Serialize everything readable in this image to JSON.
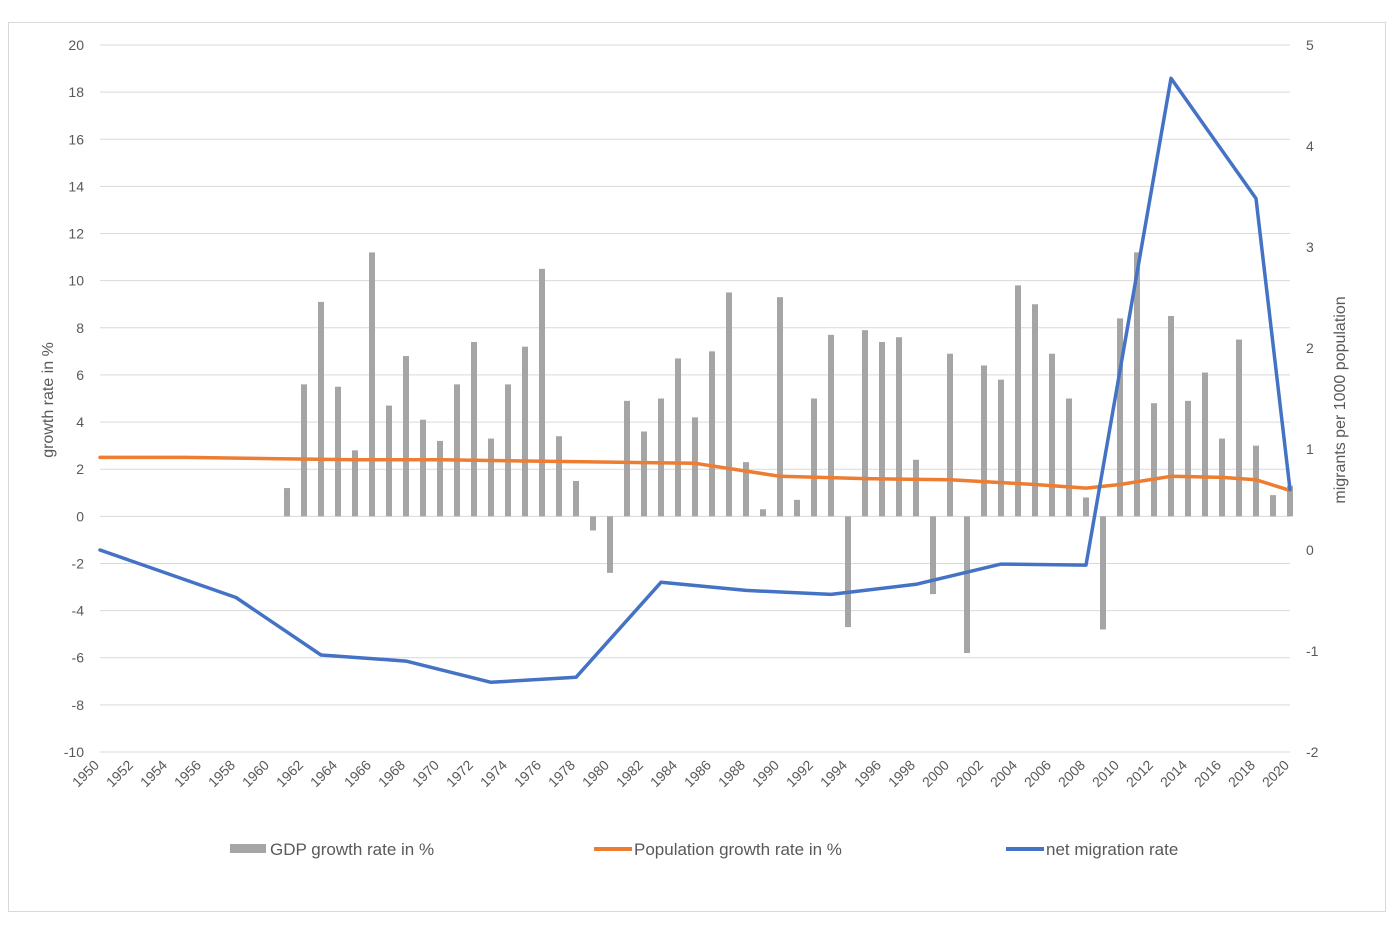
{
  "chart_data": {
    "type": "bar",
    "title": "",
    "ylabel": "growth rate in %",
    "y2label": "migrants per 1000 population",
    "ylim": [
      -10,
      20
    ],
    "y2lim": [
      -2,
      5
    ],
    "yticks": [
      -10,
      -8,
      -6,
      -4,
      -2,
      0,
      2,
      4,
      6,
      8,
      10,
      12,
      14,
      16,
      18,
      20
    ],
    "y2ticks": [
      -2,
      -1,
      0,
      1,
      2,
      3,
      4,
      5
    ],
    "xlim": [
      1950,
      2020
    ],
    "xticks": [
      1950,
      1952,
      1954,
      1956,
      1958,
      1960,
      1962,
      1964,
      1966,
      1968,
      1970,
      1972,
      1974,
      1976,
      1978,
      1980,
      1982,
      1984,
      1986,
      1988,
      1990,
      1992,
      1994,
      1996,
      1998,
      2000,
      2002,
      2004,
      2006,
      2008,
      2010,
      2012,
      2014,
      2016,
      2018,
      2020
    ],
    "grid": true,
    "legend_position": "bottom",
    "series": [
      {
        "name": "GDP growth rate in %",
        "type": "bar",
        "axis": "left",
        "color": "#a5a5a5",
        "x": [
          1961,
          1962,
          1963,
          1964,
          1965,
          1966,
          1967,
          1968,
          1969,
          1970,
          1971,
          1972,
          1973,
          1974,
          1975,
          1976,
          1977,
          1978,
          1979,
          1980,
          1981,
          1982,
          1983,
          1984,
          1985,
          1986,
          1987,
          1988,
          1989,
          1990,
          1991,
          1992,
          1993,
          1994,
          1995,
          1996,
          1997,
          1998,
          1999,
          2000,
          2001,
          2002,
          2003,
          2004,
          2005,
          2006,
          2007,
          2008,
          2009,
          2010,
          2011,
          2012,
          2013,
          2014,
          2015,
          2016,
          2017,
          2018,
          2019,
          2020
        ],
        "values": [
          1.2,
          5.6,
          9.1,
          5.5,
          2.8,
          11.2,
          4.7,
          6.8,
          4.1,
          3.2,
          5.6,
          7.4,
          3.3,
          5.6,
          7.2,
          10.5,
          3.4,
          1.5,
          -0.6,
          -2.4,
          4.9,
          3.6,
          5.0,
          6.7,
          4.2,
          7.0,
          9.5,
          2.3,
          0.3,
          9.3,
          0.7,
          5.0,
          7.7,
          -4.7,
          7.9,
          7.4,
          7.6,
          2.4,
          -3.3,
          6.9,
          -5.8,
          6.4,
          5.8,
          9.8,
          9.0,
          6.9,
          5.0,
          0.8,
          -4.8,
          8.4,
          11.2,
          4.8,
          8.5,
          4.9,
          6.1,
          3.3,
          7.5,
          3.0,
          0.9,
          1.3
        ]
      },
      {
        "name": "Population growth rate in %",
        "type": "line",
        "axis": "left",
        "color": "#ed7d31",
        "x": [
          1950,
          1955,
          1960,
          1965,
          1970,
          1975,
          1980,
          1985,
          1990,
          1995,
          2000,
          2005,
          2008,
          2010,
          2013,
          2016,
          2018,
          2020
        ],
        "values": [
          2.5,
          2.5,
          2.45,
          2.4,
          2.4,
          2.35,
          2.3,
          2.25,
          1.7,
          1.6,
          1.55,
          1.35,
          1.2,
          1.35,
          1.7,
          1.65,
          1.55,
          1.1
        ]
      },
      {
        "name": "net migration rate",
        "type": "line",
        "axis": "right",
        "color": "#4472c4",
        "x": [
          1950,
          1958,
          1963,
          1968,
          1973,
          1978,
          1983,
          1988,
          1993,
          1998,
          2003,
          2008,
          2013,
          2018,
          2020
        ],
        "values": [
          0.0,
          -0.47,
          -1.04,
          -1.1,
          -1.31,
          -1.26,
          -0.32,
          -0.4,
          -0.44,
          -0.34,
          -0.14,
          -0.15,
          4.67,
          3.48,
          0.6
        ]
      }
    ]
  }
}
